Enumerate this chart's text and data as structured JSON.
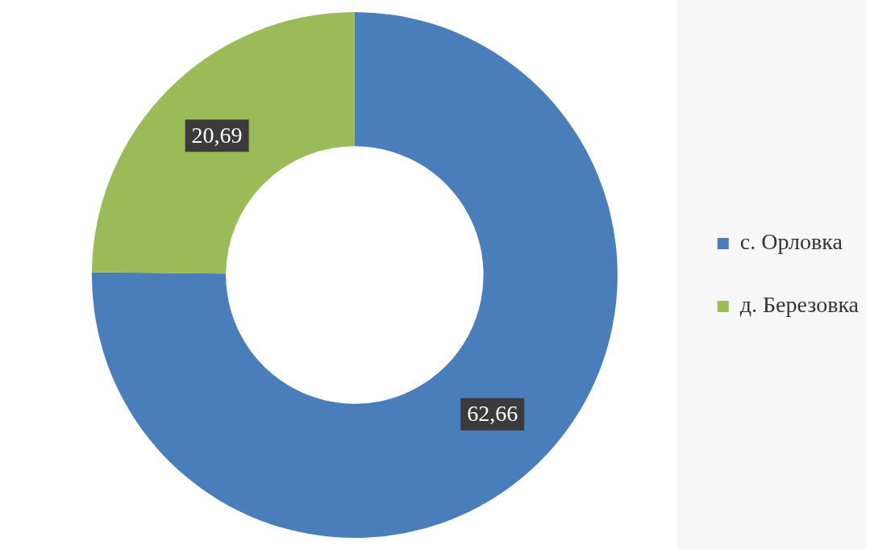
{
  "chart_data": {
    "type": "donut",
    "categories": [
      "с. Орловка",
      "д. Березовка"
    ],
    "values": [
      62.66,
      20.69
    ],
    "colors": [
      "#4a7ebb",
      "#9bbb59"
    ],
    "value_labels": [
      "62,66",
      "20,69"
    ],
    "legend": "right"
  }
}
